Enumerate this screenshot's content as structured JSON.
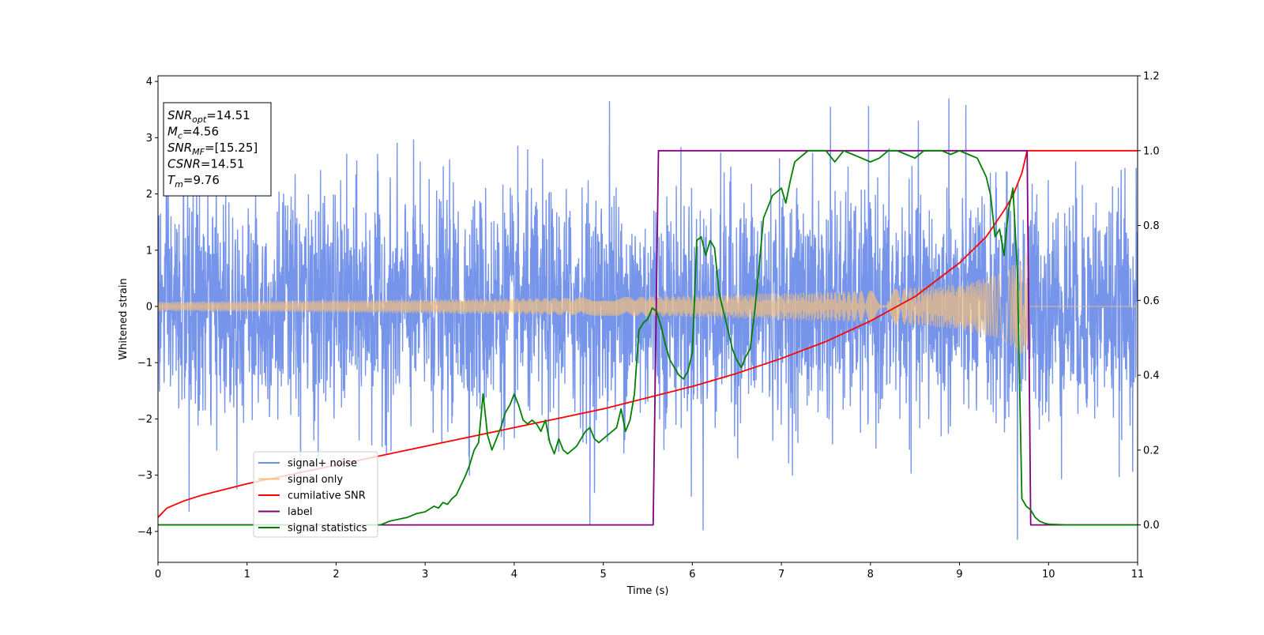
{
  "chart_data": {
    "type": "line",
    "xlabel": "Time (s)",
    "ylabel_left": "Whitened strain",
    "ylabel_right": "",
    "xlim": [
      0,
      11
    ],
    "ylim_left": [
      -4.55,
      4.1
    ],
    "ylim_right": [
      -0.1,
      1.2
    ],
    "x_ticks": [
      0,
      1,
      2,
      3,
      4,
      5,
      6,
      7,
      8,
      9,
      10,
      11
    ],
    "y_ticks_left": [
      -4,
      -3,
      -2,
      -1,
      0,
      1,
      2,
      3,
      4
    ],
    "y_ticks_right": [
      0.0,
      0.2,
      0.4,
      0.6,
      0.8,
      1.0,
      1.2
    ],
    "x_tick_labels": [
      "0",
      "1",
      "2",
      "3",
      "4",
      "5",
      "6",
      "7",
      "8",
      "9",
      "10",
      "11"
    ],
    "y_tick_labels_left": [
      "−4",
      "−3",
      "−2",
      "−1",
      "0",
      "1",
      "2",
      "3",
      "4"
    ],
    "y_tick_labels_right": [
      "0.0",
      "0.2",
      "0.4",
      "0.6",
      "0.8",
      "1.0",
      "1.2"
    ],
    "grid": false,
    "legend_position": "lower-left",
    "info_box": {
      "position": "top-left",
      "lines": [
        {
          "sym": "SNR",
          "sub": "opt",
          "value": "=14.51"
        },
        {
          "sym": "M",
          "sub": "c",
          "value": "=4.56"
        },
        {
          "sym": "SNR",
          "sub": "MF",
          "value": "=[15.25]"
        },
        {
          "sym": "CSNR",
          "sub": "",
          "value": "=14.51"
        },
        {
          "sym": "T",
          "sub": "m",
          "value": "=9.76"
        }
      ]
    },
    "series": [
      {
        "name": "signal+ noise",
        "color": "#6f8ee8",
        "axis": "left",
        "kind": "noise",
        "x_range": [
          0,
          11
        ],
        "std": 1.0,
        "peak_values": [
          {
            "x": 0.35,
            "y": -3.65
          },
          {
            "x": 1.6,
            "y": -3.5
          },
          {
            "x": 4.85,
            "y": -3.9
          },
          {
            "x": 5.07,
            "y": 3.65
          },
          {
            "x": 6.12,
            "y": -3.98
          },
          {
            "x": 7.55,
            "y": 3.55
          },
          {
            "x": 8.88,
            "y": 3.7
          },
          {
            "x": 9.65,
            "y": -4.15
          }
        ]
      },
      {
        "name": "signal only",
        "color": "#f5c07a",
        "axis": "left",
        "kind": "chirp",
        "x_range": [
          0,
          11
        ],
        "merger_time": 9.76,
        "amplitude_envelope": [
          {
            "x": 0.0,
            "y": 0.08
          },
          {
            "x": 2.0,
            "y": 0.11
          },
          {
            "x": 4.0,
            "y": 0.14
          },
          {
            "x": 6.0,
            "y": 0.19
          },
          {
            "x": 8.0,
            "y": 0.28
          },
          {
            "x": 9.0,
            "y": 0.4
          },
          {
            "x": 9.5,
            "y": 0.6
          },
          {
            "x": 9.76,
            "y": 0.95
          },
          {
            "x": 9.77,
            "y": 0.0
          },
          {
            "x": 11.0,
            "y": 0.0
          }
        ]
      },
      {
        "name": "cumilative SNR",
        "color": "#ff0000",
        "axis": "right",
        "kind": "line",
        "x": [
          0,
          0.1,
          0.3,
          0.5,
          1.0,
          1.5,
          2.0,
          2.5,
          3.0,
          3.5,
          4.0,
          4.5,
          5.0,
          5.5,
          6.0,
          6.5,
          7.0,
          7.5,
          8.0,
          8.5,
          9.0,
          9.3,
          9.5,
          9.6,
          9.7,
          9.76,
          11.0
        ],
        "values": [
          0.02,
          0.045,
          0.065,
          0.08,
          0.11,
          0.135,
          0.16,
          0.185,
          0.21,
          0.235,
          0.26,
          0.285,
          0.31,
          0.34,
          0.37,
          0.405,
          0.445,
          0.49,
          0.545,
          0.61,
          0.7,
          0.77,
          0.84,
          0.88,
          0.94,
          1.0,
          1.0
        ]
      },
      {
        "name": "label",
        "color": "#800080",
        "axis": "right",
        "kind": "line",
        "x": [
          0,
          5.56,
          5.62,
          9.76,
          9.8,
          11.0
        ],
        "values": [
          0.0,
          0.0,
          1.0,
          1.0,
          0.0,
          0.0
        ]
      },
      {
        "name": "signal statistics",
        "color": "#008000",
        "axis": "right",
        "kind": "line",
        "x": [
          0.0,
          0.5,
          1.0,
          1.5,
          2.0,
          2.5,
          2.6,
          2.8,
          2.9,
          3.0,
          3.1,
          3.15,
          3.2,
          3.25,
          3.3,
          3.35,
          3.45,
          3.5,
          3.55,
          3.6,
          3.65,
          3.7,
          3.75,
          3.8,
          3.85,
          3.9,
          3.95,
          4.0,
          4.05,
          4.1,
          4.15,
          4.2,
          4.25,
          4.3,
          4.35,
          4.4,
          4.45,
          4.5,
          4.55,
          4.6,
          4.7,
          4.8,
          4.85,
          4.9,
          4.95,
          5.0,
          5.1,
          5.15,
          5.2,
          5.25,
          5.3,
          5.35,
          5.4,
          5.45,
          5.5,
          5.55,
          5.6,
          5.65,
          5.7,
          5.75,
          5.8,
          5.85,
          5.9,
          5.95,
          6.0,
          6.05,
          6.1,
          6.15,
          6.2,
          6.25,
          6.3,
          6.35,
          6.4,
          6.45,
          6.5,
          6.55,
          6.6,
          6.65,
          6.7,
          6.75,
          6.8,
          6.85,
          6.9,
          6.95,
          7.0,
          7.05,
          7.1,
          7.15,
          7.2,
          7.25,
          7.3,
          7.4,
          7.5,
          7.6,
          7.7,
          7.8,
          7.9,
          8.0,
          8.1,
          8.2,
          8.3,
          8.4,
          8.5,
          8.6,
          8.7,
          8.8,
          8.9,
          9.0,
          9.1,
          9.2,
          9.3,
          9.35,
          9.4,
          9.45,
          9.5,
          9.55,
          9.6,
          9.65,
          9.7,
          9.75,
          9.8,
          9.85,
          9.9,
          9.95,
          10.0,
          10.2,
          10.5,
          11.0
        ],
        "values": [
          0.0,
          0.0,
          0.0,
          0.0,
          0.0,
          0.0,
          0.01,
          0.02,
          0.03,
          0.035,
          0.05,
          0.045,
          0.06,
          0.055,
          0.07,
          0.08,
          0.13,
          0.16,
          0.2,
          0.22,
          0.35,
          0.24,
          0.2,
          0.23,
          0.26,
          0.3,
          0.32,
          0.35,
          0.32,
          0.28,
          0.27,
          0.28,
          0.27,
          0.25,
          0.28,
          0.22,
          0.19,
          0.23,
          0.2,
          0.19,
          0.21,
          0.25,
          0.26,
          0.23,
          0.22,
          0.23,
          0.25,
          0.26,
          0.31,
          0.25,
          0.28,
          0.35,
          0.52,
          0.54,
          0.55,
          0.58,
          0.57,
          0.53,
          0.48,
          0.44,
          0.42,
          0.4,
          0.39,
          0.41,
          0.46,
          0.76,
          0.77,
          0.72,
          0.76,
          0.74,
          0.62,
          0.57,
          0.52,
          0.47,
          0.44,
          0.42,
          0.45,
          0.47,
          0.57,
          0.69,
          0.82,
          0.85,
          0.88,
          0.89,
          0.9,
          0.86,
          0.92,
          0.97,
          0.98,
          0.99,
          1.0,
          1.0,
          1.0,
          0.97,
          1.0,
          0.99,
          0.98,
          0.97,
          0.98,
          1.0,
          1.0,
          0.99,
          0.98,
          1.0,
          1.0,
          1.0,
          0.99,
          1.0,
          0.99,
          0.98,
          0.93,
          0.88,
          0.77,
          0.79,
          0.72,
          0.84,
          0.9,
          0.68,
          0.07,
          0.05,
          0.04,
          0.02,
          0.01,
          0.005,
          0.002,
          0.0,
          0.0,
          0.0
        ]
      }
    ]
  }
}
